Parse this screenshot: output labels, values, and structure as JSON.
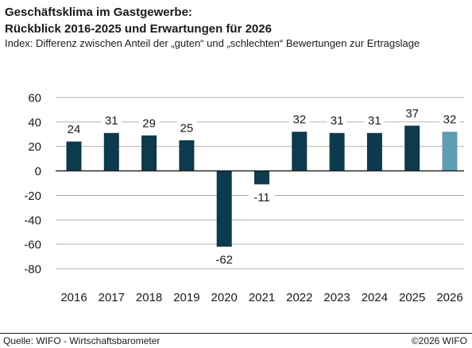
{
  "header": {
    "title_line1": "Geschäftsklima im Gastgewerbe:",
    "title_line2": "Rückblick 2016-2025 und Erwartungen für 2026",
    "subtitle": "Index: Differenz zwischen Anteil der „guten“ und „schlechten“ Bewertungen zur Ertragslage"
  },
  "footer": {
    "source": "Quelle: WIFO - Wirtschaftsbarometer",
    "copyright": "©2026 WIFO"
  },
  "colors": {
    "historical": "#0d3a4d",
    "expectation": "#5f9cb3",
    "gridline": "#9a9a9a"
  },
  "chart_data": {
    "type": "bar",
    "title": "",
    "xlabel": "",
    "ylabel": "",
    "ylim": [
      -80,
      60
    ],
    "yticks": [
      60,
      40,
      20,
      0,
      -20,
      -40,
      -60,
      -80
    ],
    "grid": true,
    "categories": [
      "2016",
      "2017",
      "2018",
      "2019",
      "2020",
      "2021",
      "2022",
      "2023",
      "2024",
      "2025",
      "2026"
    ],
    "values": [
      24,
      31,
      29,
      25,
      -62,
      -11,
      32,
      31,
      31,
      37,
      32
    ],
    "data_labels": [
      "24",
      "31",
      "29",
      "25",
      "-62",
      "-11",
      "32",
      "31",
      "31",
      "37",
      "32"
    ],
    "bar_types": [
      "historical",
      "historical",
      "historical",
      "historical",
      "historical",
      "historical",
      "historical",
      "historical",
      "historical",
      "historical",
      "expectation"
    ]
  }
}
